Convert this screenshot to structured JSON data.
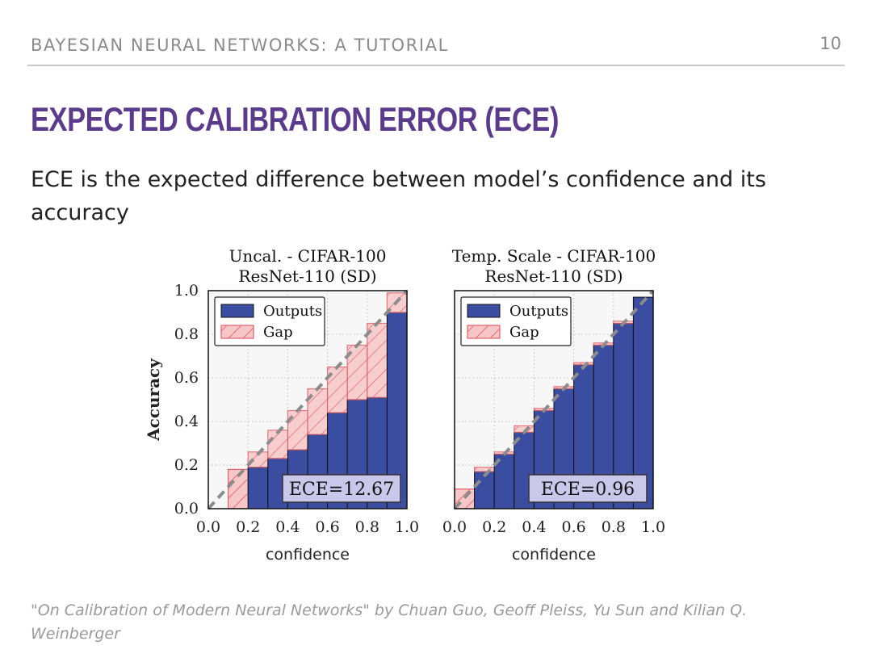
{
  "slide": {
    "header_title": "BAYESIAN NEURAL NETWORKS: A TUTORIAL",
    "page_number": "10",
    "title": "EXPECTED CALIBRATION ERROR (ECE)",
    "body": "ECE is the expected difference between model’s confidence and its accuracy",
    "citation": "\"On Calibration of Modern Neural Networks\" by Chuan Guo, Geoff Pleiss, Yu Sun and Kilian Q. Weinberger"
  },
  "colors": {
    "title": "#5b3b8c",
    "outputs_fill": "#3a4da0",
    "gap_fill": "#f7c6c7",
    "gap_stroke": "#e0616a",
    "diagonal": "#8c8c8c",
    "ece_box": "#c9c8ea"
  },
  "chart_data": [
    {
      "type": "bar",
      "title": "Uncal. - CIFAR-100\nResNet-110 (SD)",
      "xlabel": "confidence",
      "ylabel": "Accuracy",
      "xlim": [
        0,
        1
      ],
      "ylim": [
        0,
        1
      ],
      "x_ticks": [
        "0.0",
        "0.2",
        "0.4",
        "0.6",
        "0.8",
        "1.0"
      ],
      "y_ticks": [
        "0.0",
        "0.2",
        "0.4",
        "0.6",
        "0.8",
        "1.0"
      ],
      "grid": true,
      "legend_position": "top-left",
      "bin_edges": [
        0.0,
        0.1,
        0.2,
        0.3,
        0.4,
        0.5,
        0.6,
        0.7,
        0.8,
        0.9,
        1.0
      ],
      "series": [
        {
          "name": "Outputs",
          "values": [
            0.0,
            0.0,
            0.19,
            0.23,
            0.27,
            0.34,
            0.44,
            0.5,
            0.51,
            0.9
          ]
        },
        {
          "name": "Gap",
          "values": [
            0.0,
            0.18,
            0.26,
            0.36,
            0.45,
            0.55,
            0.65,
            0.75,
            0.85,
            0.99
          ]
        }
      ],
      "annotation": "ECE=12.67"
    },
    {
      "type": "bar",
      "title": "Temp. Scale - CIFAR-100\nResNet-110 (SD)",
      "xlabel": "confidence",
      "ylabel": "",
      "xlim": [
        0,
        1
      ],
      "ylim": [
        0,
        1
      ],
      "x_ticks": [
        "0.0",
        "0.2",
        "0.4",
        "0.6",
        "0.8",
        "1.0"
      ],
      "y_ticks": [
        "0.0",
        "0.2",
        "0.4",
        "0.6",
        "0.8",
        "1.0"
      ],
      "grid": true,
      "legend_position": "top-left",
      "bin_edges": [
        0.0,
        0.1,
        0.2,
        0.3,
        0.4,
        0.5,
        0.6,
        0.7,
        0.8,
        0.9,
        1.0
      ],
      "series": [
        {
          "name": "Outputs",
          "values": [
            0.0,
            0.17,
            0.25,
            0.35,
            0.45,
            0.55,
            0.66,
            0.75,
            0.85,
            0.97
          ]
        },
        {
          "name": "Gap",
          "values": [
            0.09,
            0.19,
            0.26,
            0.38,
            0.46,
            0.56,
            0.67,
            0.76,
            0.86,
            0.97
          ]
        }
      ],
      "annotation": "ECE=0.96"
    }
  ]
}
